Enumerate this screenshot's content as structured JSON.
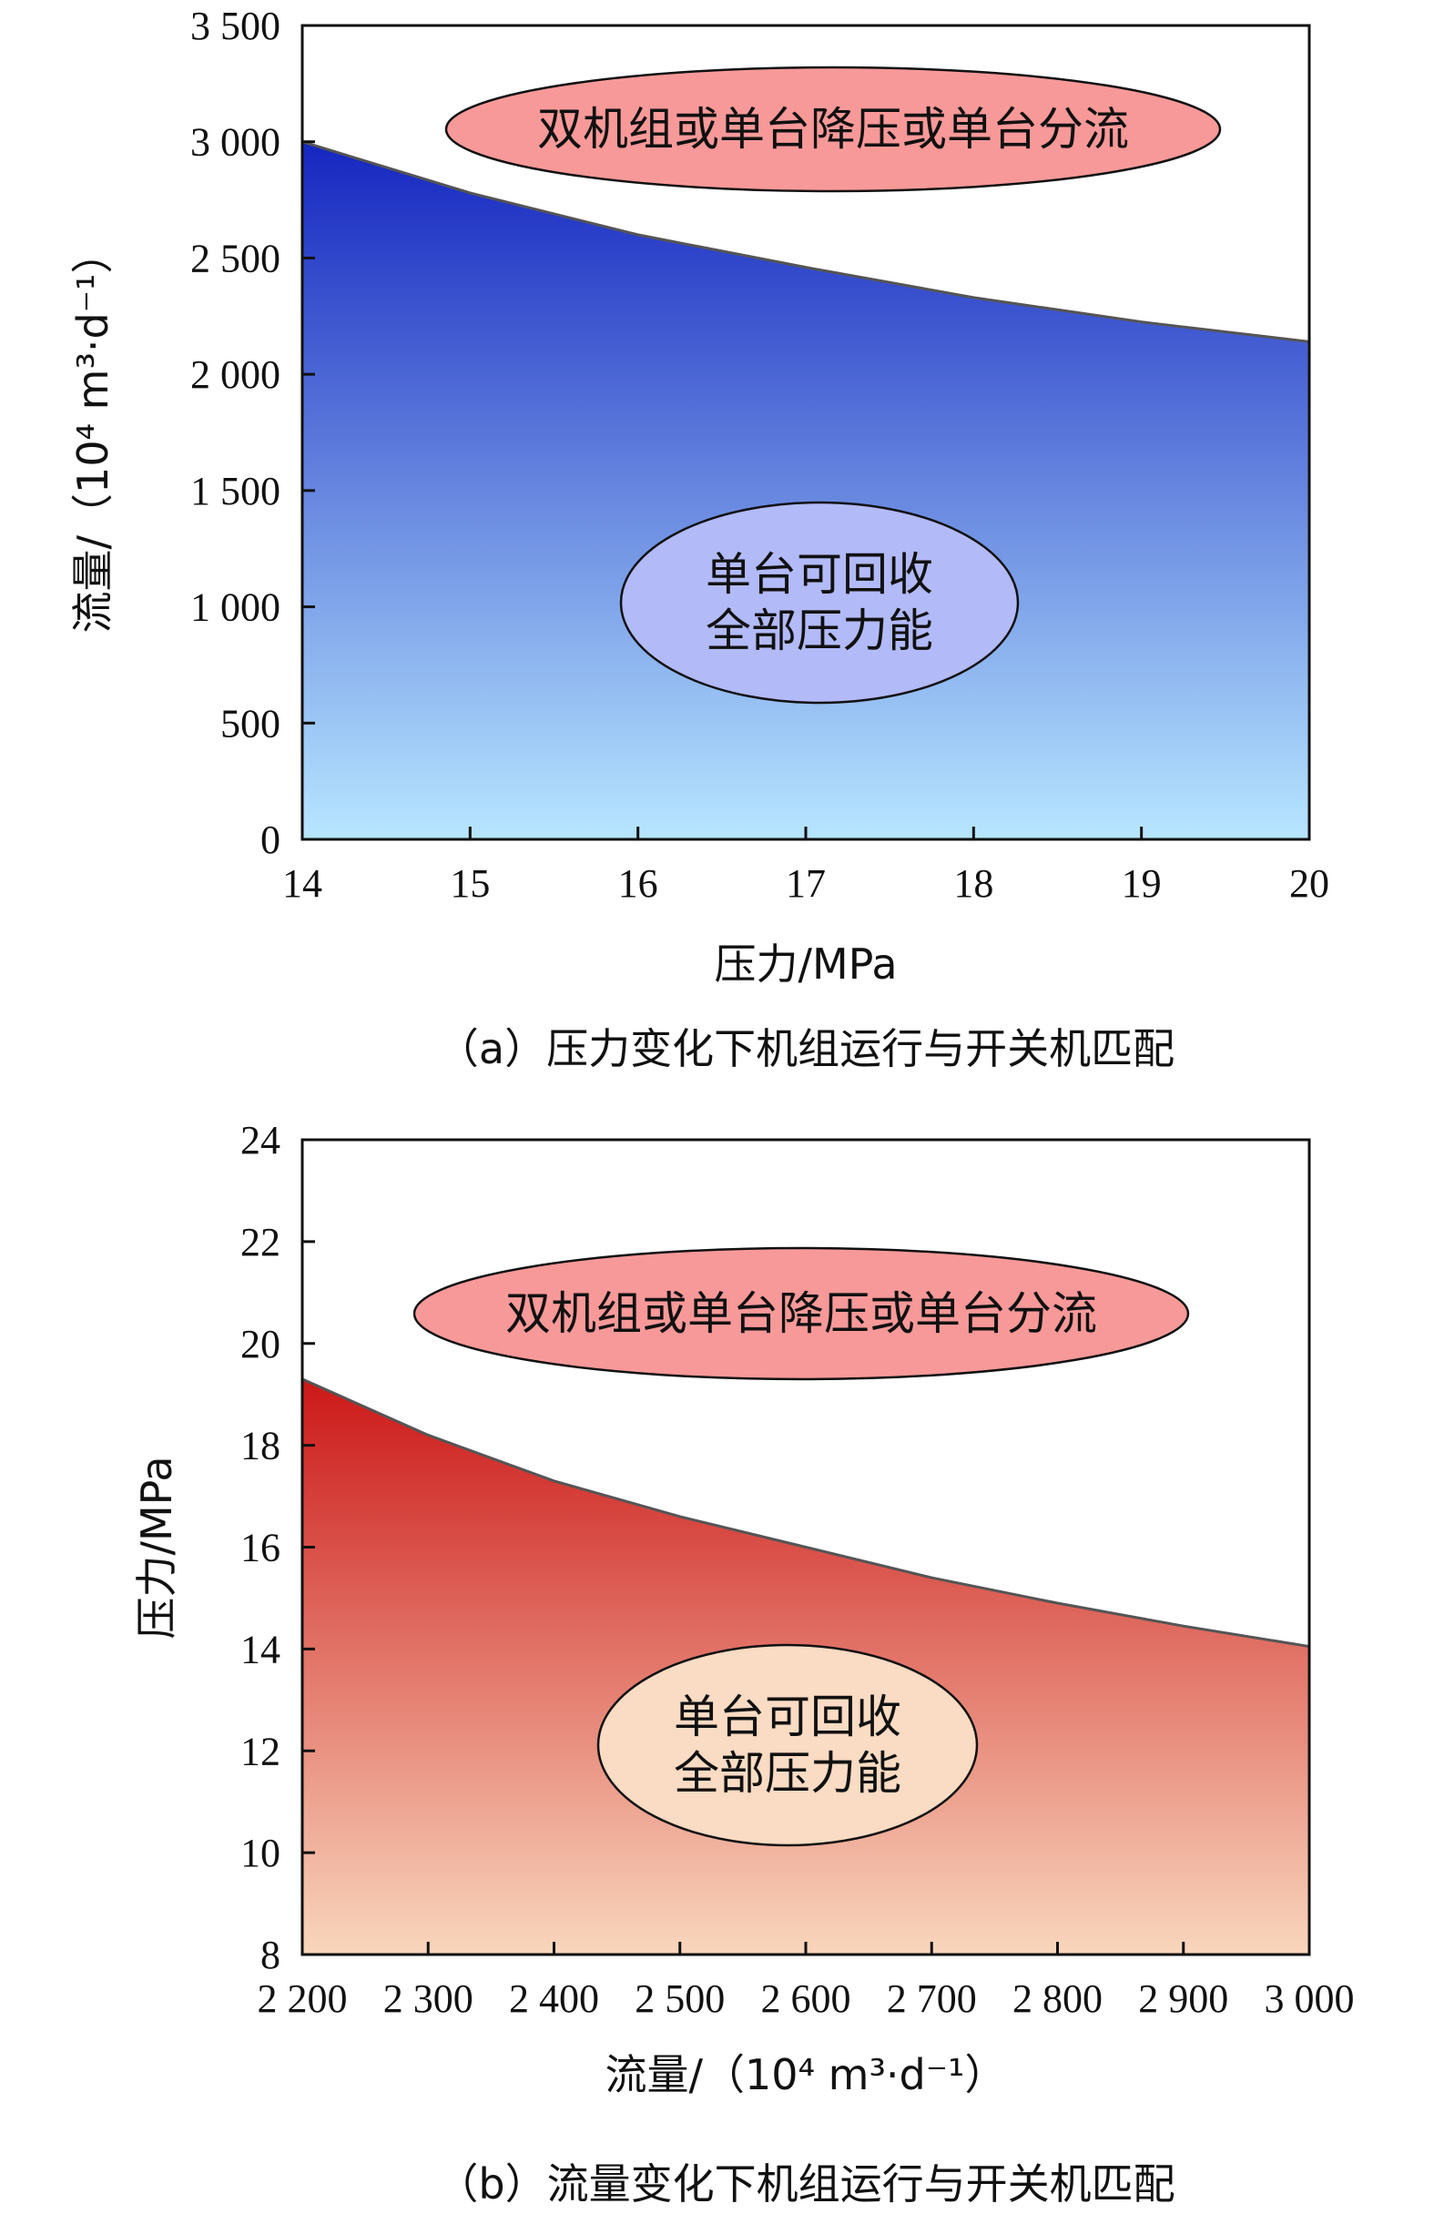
{
  "chart_data": [
    {
      "id": "a",
      "type": "area",
      "x": [
        14,
        15,
        16,
        17,
        18,
        19,
        20
      ],
      "y": [
        3000,
        2780,
        2600,
        2460,
        2330,
        2225,
        2140
      ],
      "xlabel": "压力/MPa",
      "ylabel": "流量/（10⁴ m³·d⁻¹）",
      "xlim": [
        14,
        20
      ],
      "ylim": [
        0,
        3500
      ],
      "xticks": [
        14,
        15,
        16,
        17,
        18,
        19,
        20
      ],
      "yticks": [
        0,
        500,
        1000,
        1500,
        2000,
        2500,
        3000,
        3500
      ],
      "xtick_labels": [
        "14",
        "15",
        "16",
        "17",
        "18",
        "19",
        "20"
      ],
      "ytick_labels": [
        "0",
        "500",
        "1 000",
        "1 500",
        "2 000",
        "2 500",
        "3 000",
        "3 500"
      ],
      "fill_colors": {
        "top": "#1526c0",
        "bottom": "#b7e6ff"
      },
      "caption": "（a）压力变化下机组运行与开关机匹配",
      "annotations": [
        {
          "lines": [
            "双机组或单台降压或单台分流"
          ],
          "fill": "#f89999"
        },
        {
          "lines": [
            "单台可回收",
            "全部压力能"
          ],
          "fill": "#b2baf8"
        }
      ]
    },
    {
      "id": "b",
      "type": "area",
      "x": [
        2200,
        2300,
        2400,
        2500,
        2600,
        2700,
        2800,
        2900,
        3000
      ],
      "y": [
        19.3,
        18.2,
        17.3,
        16.6,
        16.0,
        15.4,
        14.9,
        14.45,
        14.05
      ],
      "xlabel": "流量/（10⁴ m³·d⁻¹）",
      "ylabel": "压力/MPa",
      "xlim": [
        2200,
        3000
      ],
      "ylim": [
        8,
        24
      ],
      "xticks": [
        2200,
        2300,
        2400,
        2500,
        2600,
        2700,
        2800,
        2900,
        3000
      ],
      "yticks": [
        8,
        10,
        12,
        14,
        16,
        18,
        20,
        22,
        24
      ],
      "xtick_labels": [
        "2 200",
        "2 300",
        "2 400",
        "2 500",
        "2 600",
        "2 700",
        "2 800",
        "2 900",
        "3 000"
      ],
      "ytick_labels": [
        "8",
        "10",
        "12",
        "14",
        "16",
        "18",
        "20",
        "22",
        "24"
      ],
      "fill_colors": {
        "top": "#cc1818",
        "bottom": "#f9d6bd"
      },
      "caption": "（b）流量变化下机组运行与开关机匹配",
      "annotations": [
        {
          "lines": [
            "双机组或单台降压或单台分流"
          ],
          "fill": "#f89999"
        },
        {
          "lines": [
            "单台可回收",
            "全部压力能"
          ],
          "fill": "#fadbc3"
        }
      ]
    }
  ]
}
